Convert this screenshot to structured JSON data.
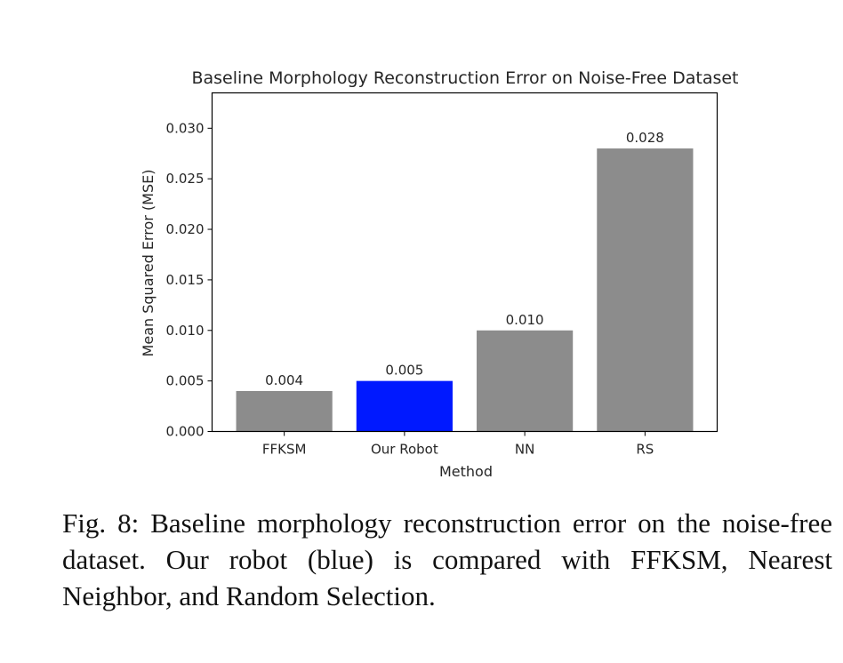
{
  "chart_data": {
    "type": "bar",
    "title": "Baseline Morphology Reconstruction Error on Noise-Free Dataset",
    "xlabel": "Method",
    "ylabel": "Mean Squared Error (MSE)",
    "categories": [
      "FFKSM",
      "Our Robot",
      "NN",
      "RS"
    ],
    "values": [
      0.004,
      0.005,
      0.01,
      0.028
    ],
    "value_labels": [
      "0.004",
      "0.005",
      "0.010",
      "0.028"
    ],
    "bar_colors": [
      "#8c8c8c",
      "#0019ff",
      "#8c8c8c",
      "#8c8c8c"
    ],
    "ylim": [
      0,
      0.0335
    ],
    "yticks": [
      0.0,
      0.005,
      0.01,
      0.015,
      0.02,
      0.025,
      0.03
    ],
    "ytick_labels": [
      "0.000",
      "0.005",
      "0.010",
      "0.015",
      "0.020",
      "0.025",
      "0.030"
    ],
    "grid": false,
    "legend": null,
    "highlight": "Our Robot"
  },
  "caption": {
    "text": "Fig. 8: Baseline morphology reconstruction error on the noise-free dataset. Our robot (blue) is compared with FFKSM, Nearest Neighbor, and Random Selection."
  }
}
